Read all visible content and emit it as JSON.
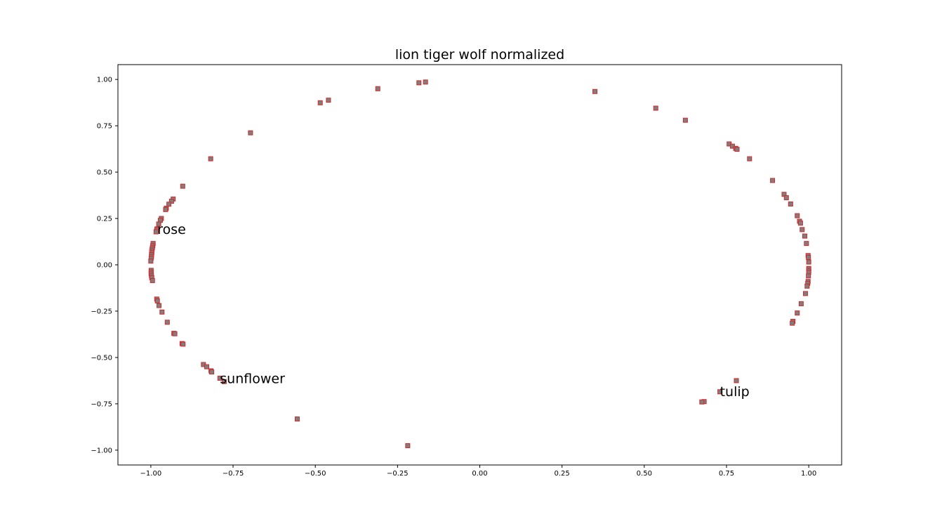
{
  "chart_data": {
    "type": "scatter",
    "title": "lion tiger wolf normalized",
    "xlabel": "",
    "ylabel": "",
    "xlim": [
      -1.1,
      1.1
    ],
    "ylim": [
      -1.08,
      1.08
    ],
    "xticks": [
      -1.0,
      -0.75,
      -0.5,
      -0.25,
      0.0,
      0.25,
      0.5,
      0.75,
      1.0
    ],
    "yticks": [
      -1.0,
      -0.75,
      -0.5,
      -0.25,
      0.0,
      0.25,
      0.5,
      0.75,
      1.0
    ],
    "tick_labels_x": [
      "−1.00",
      "−0.75",
      "−0.50",
      "−0.25",
      "0.00",
      "0.25",
      "0.50",
      "0.75",
      "1.00"
    ],
    "tick_labels_y": [
      "−1.00",
      "−0.75",
      "−0.50",
      "−0.25",
      "0.00",
      "0.25",
      "0.50",
      "0.75",
      "1.00"
    ],
    "grid": false,
    "marker": "square",
    "marker_fill": "#7f7f7f",
    "marker_edge": "#d62728",
    "points": [
      [
        -0.165,
        0.986
      ],
      [
        -0.185,
        0.982
      ],
      [
        -0.31,
        0.95
      ],
      [
        -0.46,
        0.888
      ],
      [
        -0.485,
        0.874
      ],
      [
        -0.697,
        0.712
      ],
      [
        -0.818,
        0.572
      ],
      [
        -0.903,
        0.424
      ],
      [
        -0.932,
        0.355
      ],
      [
        -0.937,
        0.343
      ],
      [
        -0.945,
        0.327
      ],
      [
        -0.953,
        0.305
      ],
      [
        -0.955,
        0.298
      ],
      [
        -0.968,
        0.25
      ],
      [
        -0.971,
        0.24
      ],
      [
        -0.976,
        0.22
      ],
      [
        -0.981,
        0.194
      ],
      [
        -0.982,
        0.188
      ],
      [
        -0.984,
        0.178
      ],
      [
        -0.993,
        0.115
      ],
      [
        -0.994,
        0.105
      ],
      [
        -0.995,
        0.095
      ],
      [
        -0.996,
        0.085
      ],
      [
        -0.997,
        0.075
      ],
      [
        -0.997,
        0.065
      ],
      [
        -0.998,
        0.055
      ],
      [
        -0.998,
        0.045
      ],
      [
        -0.999,
        0.035
      ],
      [
        -1.0,
        0.02
      ],
      [
        -0.999,
        -0.03
      ],
      [
        -0.999,
        -0.04
      ],
      [
        -0.999,
        -0.05
      ],
      [
        -0.998,
        -0.06
      ],
      [
        -0.997,
        -0.07
      ],
      [
        -0.995,
        -0.085
      ],
      [
        -0.982,
        -0.185
      ],
      [
        -0.98,
        -0.195
      ],
      [
        -0.975,
        -0.22
      ],
      [
        -0.966,
        -0.255
      ],
      [
        -0.95,
        -0.31
      ],
      [
        -0.93,
        -0.37
      ],
      [
        -0.927,
        -0.372
      ],
      [
        -0.905,
        -0.425
      ],
      [
        -0.902,
        -0.428
      ],
      [
        -0.84,
        -0.538
      ],
      [
        -0.83,
        -0.55
      ],
      [
        -0.817,
        -0.572
      ],
      [
        -0.815,
        -0.578
      ],
      [
        -0.79,
        -0.612
      ],
      [
        -0.777,
        -0.63
      ],
      [
        -0.555,
        -0.832
      ],
      [
        -0.219,
        -0.976
      ],
      [
        0.35,
        0.935
      ],
      [
        0.535,
        0.845
      ],
      [
        0.625,
        0.78
      ],
      [
        0.758,
        0.652
      ],
      [
        0.768,
        0.64
      ],
      [
        0.778,
        0.628
      ],
      [
        0.782,
        0.623
      ],
      [
        0.82,
        0.572
      ],
      [
        0.89,
        0.455
      ],
      [
        0.925,
        0.38
      ],
      [
        0.932,
        0.362
      ],
      [
        0.945,
        0.328
      ],
      [
        0.965,
        0.265
      ],
      [
        0.972,
        0.235
      ],
      [
        0.975,
        0.225
      ],
      [
        0.98,
        0.19
      ],
      [
        0.988,
        0.155
      ],
      [
        0.993,
        0.115
      ],
      [
        0.998,
        0.05
      ],
      [
        0.999,
        0.04
      ],
      [
        1.0,
        0.015
      ],
      [
        1.0,
        -0.02
      ],
      [
        1.0,
        -0.03
      ],
      [
        1.0,
        -0.04
      ],
      [
        0.999,
        -0.06
      ],
      [
        0.998,
        -0.09
      ],
      [
        0.997,
        -0.1
      ],
      [
        0.995,
        -0.115
      ],
      [
        0.99,
        -0.155
      ],
      [
        0.977,
        -0.21
      ],
      [
        0.965,
        -0.26
      ],
      [
        0.952,
        -0.305
      ],
      [
        0.95,
        -0.315
      ],
      [
        0.78,
        -0.625
      ],
      [
        0.73,
        -0.685
      ],
      [
        0.682,
        -0.738
      ],
      [
        0.675,
        -0.74
      ]
    ],
    "annotations": [
      {
        "text": "rose",
        "x": -0.98,
        "y": 0.19
      },
      {
        "text": "sunflower",
        "x": -0.79,
        "y": -0.615
      },
      {
        "text": "tulip",
        "x": 0.73,
        "y": -0.685
      }
    ]
  }
}
